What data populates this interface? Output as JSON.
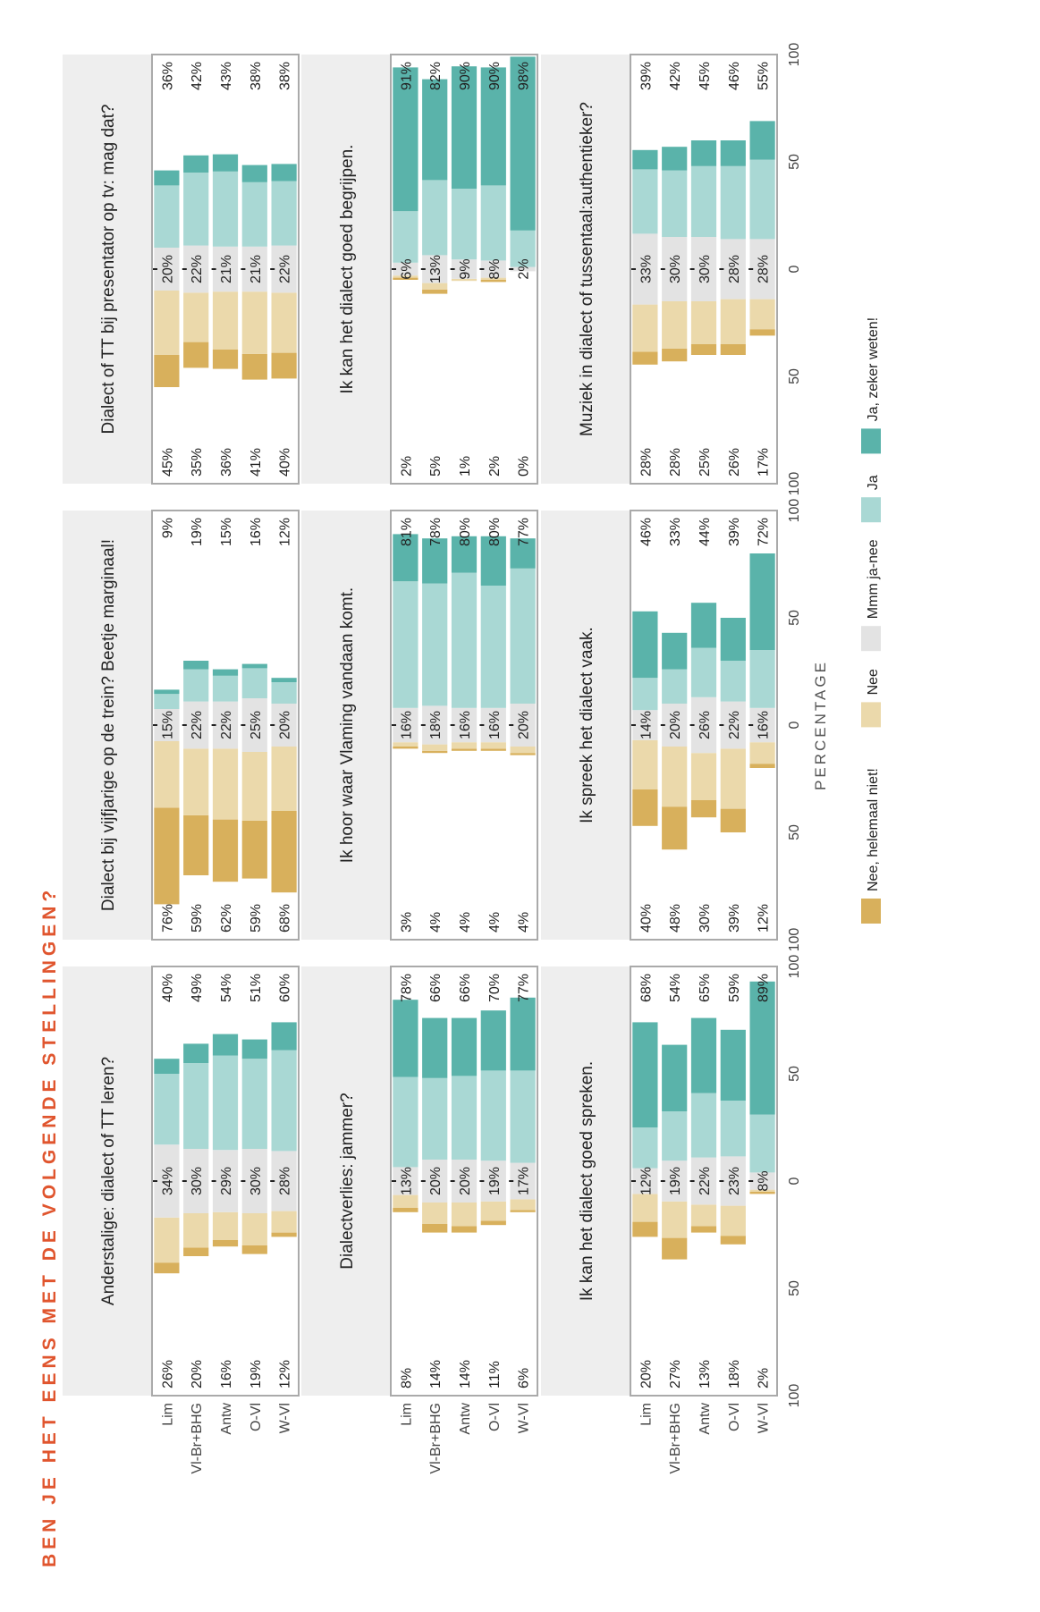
{
  "title": "BEN JE HET EENS MET DE VOLGENDE STELLINGEN?",
  "colors": {
    "title": "#e0552e",
    "strip_bg": "#eeeeee",
    "nee_helemaal": "#d8b05c",
    "nee": "#ebd9ab",
    "neutral": "#e3e3e3",
    "ja": "#a9d8d4",
    "ja_zeker": "#5ab3aa",
    "axis": "#aaaaaa",
    "text": "#222222"
  },
  "chart_data": {
    "type": "bar",
    "subtype": "diverging-stacked-horizontal-facets",
    "categories": [
      "Lim",
      "Vl-Br+BHG",
      "Antw",
      "O-Vl",
      "W-Vl"
    ],
    "xlabel": "PERCENTAGE",
    "xlim": [
      -100,
      100
    ],
    "xticks": [
      100,
      50,
      0,
      50,
      100
    ],
    "legend": {
      "placement": "bottom",
      "entries": [
        "Nee, helemaal niet!",
        "Nee",
        "Mmm ja-nee",
        "Ja",
        "Ja, zeker weten!"
      ]
    },
    "panels": [
      {
        "title": "Anderstalige: dialect of TT leren?",
        "left_labels": [
          "26%",
          "20%",
          "16%",
          "19%",
          "12%"
        ],
        "center_labels": [
          "34%",
          "30%",
          "29%",
          "30%",
          "28%"
        ],
        "right_labels": [
          "40%",
          "49%",
          "54%",
          "51%",
          "60%"
        ],
        "series": [
          {
            "name": "Nee, helemaal niet!",
            "values": [
              5,
              4,
              3,
              4,
              2
            ]
          },
          {
            "name": "Nee",
            "values": [
              21,
              16,
              13,
              15,
              10
            ]
          },
          {
            "name": "Mmm ja-nee",
            "values": [
              34,
              30,
              29,
              30,
              28
            ]
          },
          {
            "name": "Ja",
            "values": [
              33,
              40,
              44,
              42,
              47
            ]
          },
          {
            "name": "Ja, zeker weten!",
            "values": [
              7,
              9,
              10,
              9,
              13
            ]
          }
        ]
      },
      {
        "title": "Dialect bij vijfjarige op de trein? Beetje marginaal!",
        "left_labels": [
          "76%",
          "59%",
          "62%",
          "59%",
          "68%"
        ],
        "center_labels": [
          "15%",
          "22%",
          "22%",
          "25%",
          "20%"
        ],
        "right_labels": [
          "9%",
          "19%",
          "15%",
          "16%",
          "12%"
        ],
        "series": [
          {
            "name": "Nee, helemaal niet!",
            "values": [
              45,
              28,
              29,
              27,
              38
            ]
          },
          {
            "name": "Nee",
            "values": [
              31,
              31,
              33,
              32,
              30
            ]
          },
          {
            "name": "Mmm ja-nee",
            "values": [
              15,
              22,
              22,
              25,
              20
            ]
          },
          {
            "name": "Ja",
            "values": [
              7,
              15,
              12,
              14,
              10
            ]
          },
          {
            "name": "Ja, zeker weten!",
            "values": [
              2,
              4,
              3,
              2,
              2
            ]
          }
        ]
      },
      {
        "title": "Dialect of TT bij presentator op tv: mag dat?",
        "left_labels": [
          "45%",
          "35%",
          "36%",
          "41%",
          "40%"
        ],
        "center_labels": [
          "20%",
          "22%",
          "21%",
          "21%",
          "22%"
        ],
        "right_labels": [
          "36%",
          "42%",
          "43%",
          "38%",
          "38%"
        ],
        "series": [
          {
            "name": "Nee, helemaal niet!",
            "values": [
              15,
              12,
              9,
              12,
              12
            ]
          },
          {
            "name": "Nee",
            "values": [
              30,
              23,
              27,
              29,
              28
            ]
          },
          {
            "name": "Mmm ja-nee",
            "values": [
              20,
              22,
              21,
              21,
              22
            ]
          },
          {
            "name": "Ja",
            "values": [
              29,
              34,
              35,
              30,
              30
            ]
          },
          {
            "name": "Ja, zeker weten!",
            "values": [
              7,
              8,
              8,
              8,
              8
            ]
          }
        ]
      },
      {
        "title": "Dialectverlies: jammer?",
        "left_labels": [
          "8%",
          "14%",
          "14%",
          "11%",
          "6%"
        ],
        "center_labels": [
          "13%",
          "20%",
          "20%",
          "19%",
          "17%"
        ],
        "right_labels": [
          "78%",
          "66%",
          "66%",
          "70%",
          "77%"
        ],
        "series": [
          {
            "name": "Nee, helemaal niet!",
            "values": [
              2,
              4,
              3,
              2,
              1
            ]
          },
          {
            "name": "Nee",
            "values": [
              6,
              10,
              11,
              9,
              5
            ]
          },
          {
            "name": "Mmm ja-nee",
            "values": [
              13,
              20,
              20,
              19,
              17
            ]
          },
          {
            "name": "Ja",
            "values": [
              42,
              38,
              39,
              42,
              43
            ]
          },
          {
            "name": "Ja, zeker weten!",
            "values": [
              36,
              28,
              27,
              28,
              34
            ]
          }
        ]
      },
      {
        "title": "Ik hoor waar Vlaming vandaan komt.",
        "left_labels": [
          "3%",
          "4%",
          "4%",
          "4%",
          "4%"
        ],
        "center_labels": [
          "16%",
          "18%",
          "16%",
          "16%",
          "20%"
        ],
        "right_labels": [
          "81%",
          "78%",
          "80%",
          "80%",
          "77%"
        ],
        "series": [
          {
            "name": "Nee, helemaal niet!",
            "values": [
              1,
              1,
              1,
              1,
              1
            ]
          },
          {
            "name": "Nee",
            "values": [
              2,
              3,
              3,
              3,
              3
            ]
          },
          {
            "name": "Mmm ja-nee",
            "values": [
              16,
              18,
              16,
              16,
              20
            ]
          },
          {
            "name": "Ja",
            "values": [
              59,
              57,
              63,
              57,
              63
            ]
          },
          {
            "name": "Ja, zeker weten!",
            "values": [
              22,
              21,
              17,
              23,
              14
            ]
          }
        ]
      },
      {
        "title": "Ik kan het dialect goed begrijpen.",
        "left_labels": [
          "2%",
          "5%",
          "1%",
          "2%",
          "0%"
        ],
        "center_labels": [
          "6%",
          "13%",
          "9%",
          "8%",
          "2%"
        ],
        "right_labels": [
          "91%",
          "82%",
          "90%",
          "90%",
          "98%"
        ],
        "series": [
          {
            "name": "Nee, helemaal niet!",
            "values": [
              1,
              2,
              0,
              1,
              0
            ]
          },
          {
            "name": "Nee",
            "values": [
              1,
              3,
              1,
              1,
              0
            ]
          },
          {
            "name": "Mmm ja-nee",
            "values": [
              6,
              13,
              9,
              8,
              2
            ]
          },
          {
            "name": "Ja",
            "values": [
              24,
              35,
              33,
              35,
              17
            ]
          },
          {
            "name": "Ja, zeker weten!",
            "values": [
              67,
              47,
              57,
              55,
              81
            ]
          }
        ]
      },
      {
        "title": "Ik kan het dialect goed spreken.",
        "left_labels": [
          "20%",
          "27%",
          "13%",
          "18%",
          "2%"
        ],
        "center_labels": [
          "12%",
          "19%",
          "22%",
          "23%",
          "8%"
        ],
        "right_labels": [
          "68%",
          "54%",
          "65%",
          "59%",
          "89%"
        ],
        "series": [
          {
            "name": "Nee, helemaal niet!",
            "values": [
              7,
              10,
              3,
              4,
              1
            ]
          },
          {
            "name": "Nee",
            "values": [
              13,
              17,
              10,
              14,
              1
            ]
          },
          {
            "name": "Mmm ja-nee",
            "values": [
              12,
              19,
              22,
              23,
              8
            ]
          },
          {
            "name": "Ja",
            "values": [
              19,
              23,
              30,
              26,
              27
            ]
          },
          {
            "name": "Ja, zeker weten!",
            "values": [
              49,
              31,
              35,
              33,
              62
            ]
          }
        ]
      },
      {
        "title": "Ik spreek het dialect vaak.",
        "left_labels": [
          "40%",
          "48%",
          "30%",
          "39%",
          "12%"
        ],
        "center_labels": [
          "14%",
          "20%",
          "26%",
          "22%",
          "16%"
        ],
        "right_labels": [
          "46%",
          "33%",
          "44%",
          "39%",
          "72%"
        ],
        "series": [
          {
            "name": "Nee, helemaal niet!",
            "values": [
              17,
              20,
              8,
              11,
              2
            ]
          },
          {
            "name": "Nee",
            "values": [
              23,
              28,
              22,
              28,
              10
            ]
          },
          {
            "name": "Mmm ja-nee",
            "values": [
              14,
              20,
              26,
              22,
              16
            ]
          },
          {
            "name": "Ja",
            "values": [
              15,
              16,
              23,
              19,
              27
            ]
          },
          {
            "name": "Ja, zeker weten!",
            "values": [
              31,
              17,
              21,
              20,
              45
            ]
          }
        ]
      },
      {
        "title": "Muziek in dialect of tussentaal:authentieker?",
        "left_labels": [
          "28%",
          "28%",
          "25%",
          "26%",
          "17%"
        ],
        "center_labels": [
          "33%",
          "30%",
          "30%",
          "28%",
          "28%"
        ],
        "right_labels": [
          "39%",
          "42%",
          "45%",
          "46%",
          "55%"
        ],
        "series": [
          {
            "name": "Nee, helemaal niet!",
            "values": [
              6,
              6,
              5,
              5,
              3
            ]
          },
          {
            "name": "Nee",
            "values": [
              22,
              22,
              20,
              21,
              14
            ]
          },
          {
            "name": "Mmm ja-nee",
            "values": [
              33,
              30,
              30,
              28,
              28
            ]
          },
          {
            "name": "Ja",
            "values": [
              30,
              31,
              33,
              34,
              37
            ]
          },
          {
            "name": "Ja, zeker weten!",
            "values": [
              9,
              11,
              12,
              12,
              18
            ]
          }
        ]
      }
    ]
  }
}
